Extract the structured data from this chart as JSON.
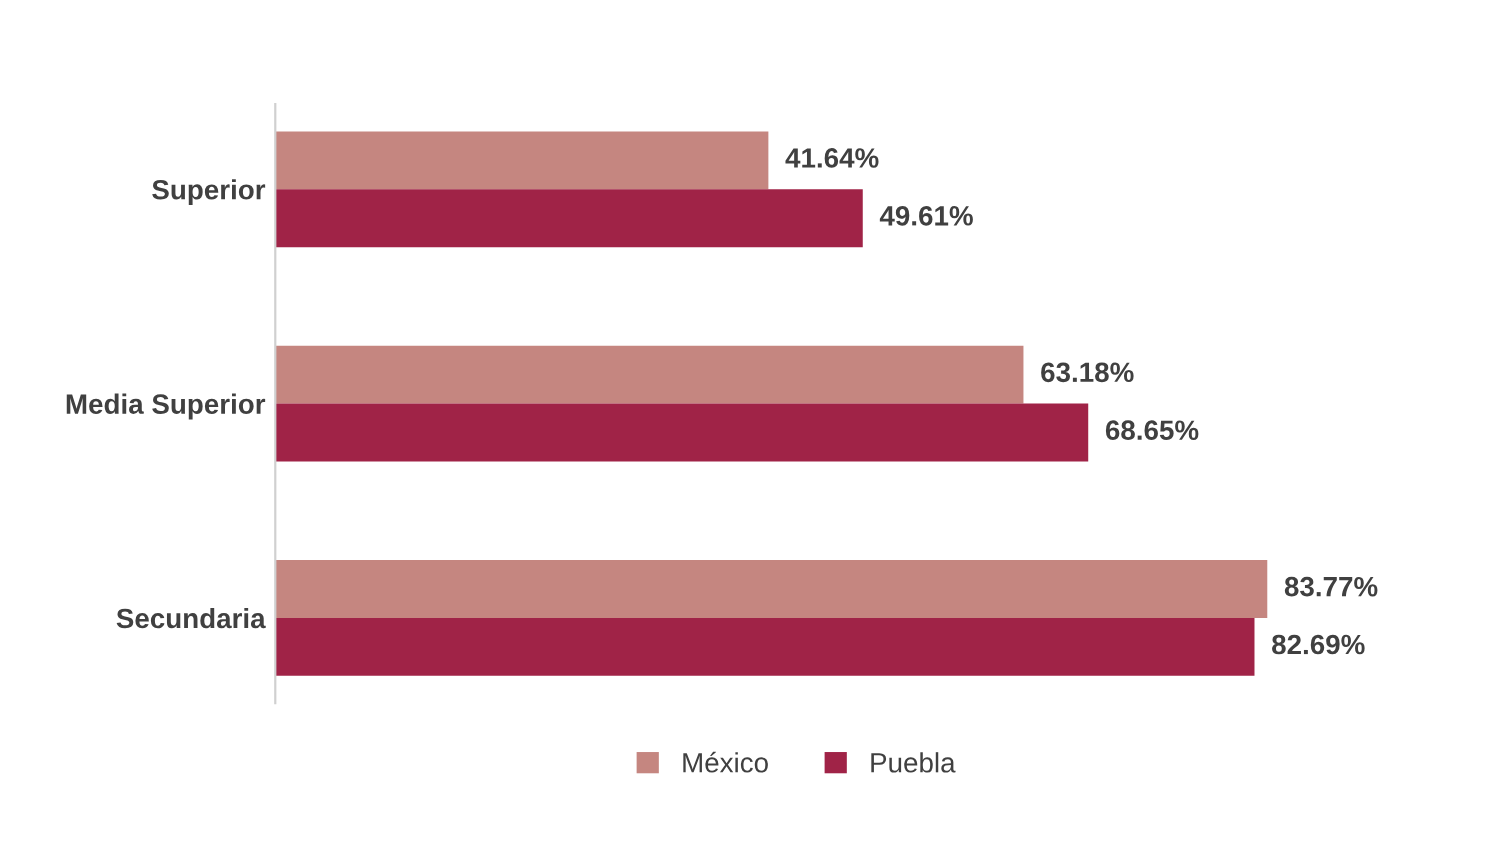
{
  "chart_data": {
    "type": "bar",
    "orientation": "horizontal",
    "categories": [
      "Superior",
      "Media Superior",
      "Secundaria"
    ],
    "series": [
      {
        "name": "México",
        "color": "#c58680",
        "values": [
          41.64,
          63.18,
          83.77
        ],
        "value_labels": [
          "41.64%",
          "63.18%",
          "83.77%"
        ]
      },
      {
        "name": "Puebla",
        "color": "#a02347",
        "values": [
          49.61,
          68.65,
          82.69
        ],
        "value_labels": [
          "49.61%",
          "68.65%",
          "82.69%"
        ]
      }
    ],
    "legend": "bottom",
    "grid": false,
    "tick_labels": "y"
  }
}
